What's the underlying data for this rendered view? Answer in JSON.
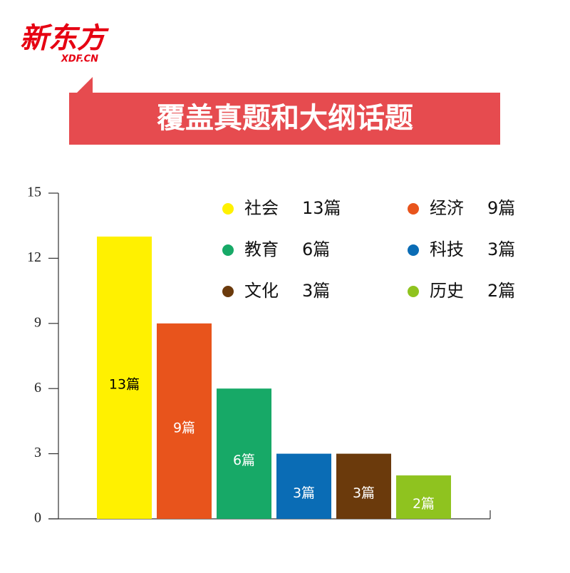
{
  "logo": {
    "name": "新东方",
    "domain": "XDF.CN"
  },
  "chart_data": {
    "type": "bar",
    "title": "覆盖真题和大纲话题",
    "categories": [
      "社会",
      "经济",
      "教育",
      "科技",
      "文化",
      "历史"
    ],
    "values": [
      13,
      9,
      6,
      3,
      3,
      2
    ],
    "value_labels": [
      "13篇",
      "9篇",
      "6篇",
      "3篇",
      "3篇",
      "2篇"
    ],
    "colors": [
      "#fff100",
      "#e8541c",
      "#17a967",
      "#0a6cb5",
      "#6b3a0c",
      "#8fc31f"
    ],
    "value_label_colors": [
      "#000000",
      "#ffffff",
      "#ffffff",
      "#ffffff",
      "#ffffff",
      "#ffffff"
    ],
    "ylim": [
      0,
      15
    ],
    "yticks": [
      0,
      3,
      6,
      9,
      12,
      15
    ],
    "grid": false
  }
}
